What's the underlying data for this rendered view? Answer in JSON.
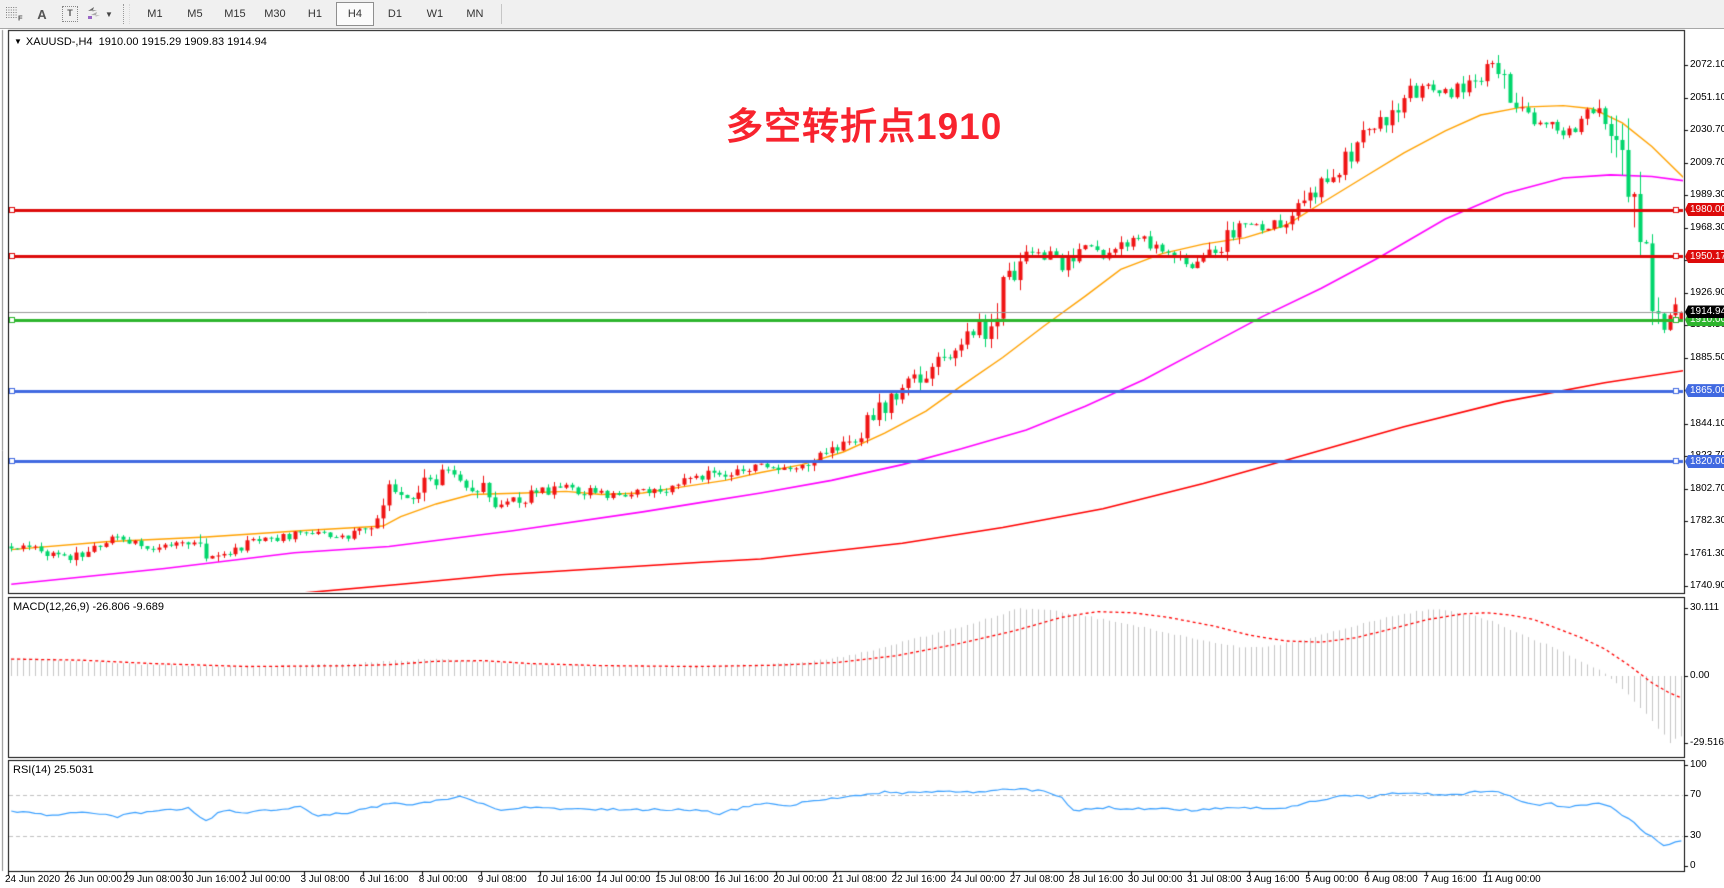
{
  "window": {
    "symbol_label": "XAUUSD-,H4",
    "quote_line": "1910.00 1915.29 1909.83 1914.94",
    "dropdown_glyph": "▼"
  },
  "toolbar": {
    "tools": [
      {
        "name": "templates",
        "glyph": "F"
      },
      {
        "name": "text-label",
        "glyph": "A"
      },
      {
        "name": "text-box",
        "glyph": "T"
      },
      {
        "name": "arrow-tools",
        "glyph": "arrows",
        "caret": "▼"
      }
    ],
    "timeframes": [
      {
        "label": "M1",
        "active": false
      },
      {
        "label": "M5",
        "active": false
      },
      {
        "label": "M15",
        "active": false
      },
      {
        "label": "M30",
        "active": false
      },
      {
        "label": "H1",
        "active": false
      },
      {
        "label": "H4",
        "active": true
      },
      {
        "label": "D1",
        "active": false
      },
      {
        "label": "W1",
        "active": false
      },
      {
        "label": "MN",
        "active": false
      }
    ]
  },
  "annotation": {
    "text": "多空转折点1910",
    "color": "#f8232e"
  },
  "indicators": {
    "macd_label": "MACD(12,26,9) -26.806 -9.689",
    "rsi_label": "RSI(14) 25.5031"
  },
  "chart_data": {
    "type": "candlestick",
    "symbol": "XAUUSD-",
    "timeframe": "H4",
    "quote": {
      "open": 1910.0,
      "high": 1915.29,
      "low": 1909.83,
      "close": 1914.94
    },
    "current_price": 1914.94,
    "current_price_label": "1914.94",
    "bars": 284,
    "seed": 73,
    "x_axis_labels": [
      "24 Jun 2020",
      "26 Jun 00:00",
      "29 Jun 08:00",
      "30 Jun 16:00",
      "2 Jul 00:00",
      "3 Jul 08:00",
      "6 Jul 16:00",
      "8 Jul 00:00",
      "9 Jul 08:00",
      "10 Jul 16:00",
      "14 Jul 00:00",
      "15 Jul 08:00",
      "16 Jul 16:00",
      "20 Jul 00:00",
      "21 Jul 08:00",
      "22 Jul 16:00",
      "24 Jul 00:00",
      "27 Jul 08:00",
      "28 Jul 16:00",
      "30 Jul 00:00",
      "31 Jul 08:00",
      "3 Aug 16:00",
      "5 Aug 00:00",
      "6 Aug 08:00",
      "7 Aug 16:00",
      "11 Aug 00:00"
    ],
    "y_axis_ticks": [
      "2072.10",
      "2051.10",
      "2030.70",
      "2009.70",
      "1989.30",
      "1968.30",
      "1947.90",
      "1926.90",
      "1906.50",
      "1885.50",
      "1865.10",
      "1844.10",
      "1823.70",
      "1802.70",
      "1782.30",
      "1761.30",
      "1740.90"
    ],
    "horizontal_lines": [
      {
        "price": 1980.0,
        "label": "1980.00",
        "color": "#dd0b0b"
      },
      {
        "price": 1950.17,
        "label": "1950.17",
        "color": "#dd0b0b"
      },
      {
        "price": 1910.0,
        "label": "1910.00",
        "color": "#2db52d"
      },
      {
        "price": 1865.0,
        "label": "1865.00",
        "color": "#4169e1"
      },
      {
        "price": 1820.0,
        "label": "1820.00",
        "color": "#4169e1"
      }
    ],
    "close_waypoints": [
      [
        0,
        1766
      ],
      [
        6,
        1762
      ],
      [
        10,
        1759
      ],
      [
        16,
        1771
      ],
      [
        24,
        1766
      ],
      [
        30,
        1770
      ],
      [
        33,
        1758
      ],
      [
        38,
        1766
      ],
      [
        42,
        1770
      ],
      [
        49,
        1774
      ],
      [
        56,
        1772
      ],
      [
        62,
        1780
      ],
      [
        64,
        1798
      ],
      [
        68,
        1794
      ],
      [
        72,
        1810
      ],
      [
        74,
        1813
      ],
      [
        78,
        1806
      ],
      [
        83,
        1792
      ],
      [
        88,
        1799
      ],
      [
        94,
        1804
      ],
      [
        100,
        1799
      ],
      [
        107,
        1800
      ],
      [
        112,
        1804
      ],
      [
        117,
        1810
      ],
      [
        122,
        1814
      ],
      [
        127,
        1818
      ],
      [
        132,
        1814
      ],
      [
        136,
        1822
      ],
      [
        140,
        1830
      ],
      [
        144,
        1838
      ],
      [
        148,
        1855
      ],
      [
        152,
        1868
      ],
      [
        156,
        1880
      ],
      [
        161,
        1895
      ],
      [
        165,
        1906
      ],
      [
        170,
        1940
      ],
      [
        174,
        1954
      ],
      [
        178,
        1944
      ],
      [
        182,
        1958
      ],
      [
        185,
        1950
      ],
      [
        190,
        1962
      ],
      [
        195,
        1954
      ],
      [
        200,
        1945
      ],
      [
        205,
        1958
      ],
      [
        209,
        1972
      ],
      [
        212,
        1969
      ],
      [
        216,
        1975
      ],
      [
        219,
        1988
      ],
      [
        223,
        2000
      ],
      [
        226,
        2012
      ],
      [
        230,
        2028
      ],
      [
        233,
        2040
      ],
      [
        236,
        2052
      ],
      [
        240,
        2060
      ],
      [
        244,
        2054
      ],
      [
        248,
        2064
      ],
      [
        251,
        2072
      ],
      [
        253,
        2068
      ],
      [
        255,
        2044
      ],
      [
        258,
        2032
      ],
      [
        261,
        2036
      ],
      [
        263,
        2030
      ],
      [
        266,
        2036
      ],
      [
        269,
        2046
      ],
      [
        271,
        2028
      ],
      [
        273,
        2008
      ],
      [
        275,
        1972
      ],
      [
        277,
        1938
      ],
      [
        279,
        1914
      ],
      [
        280,
        1907
      ],
      [
        282,
        1921
      ],
      [
        283,
        1915
      ]
    ],
    "ma_fast_waypoints": [
      [
        0,
        1764
      ],
      [
        16,
        1769
      ],
      [
        33,
        1772
      ],
      [
        49,
        1776
      ],
      [
        63,
        1779
      ],
      [
        66,
        1785
      ],
      [
        72,
        1793
      ],
      [
        78,
        1799
      ],
      [
        87,
        1800
      ],
      [
        94,
        1801
      ],
      [
        100,
        1799
      ],
      [
        107,
        1800
      ],
      [
        114,
        1804
      ],
      [
        121,
        1808
      ],
      [
        127,
        1813
      ],
      [
        134,
        1818
      ],
      [
        141,
        1826
      ],
      [
        148,
        1838
      ],
      [
        155,
        1852
      ],
      [
        161,
        1868
      ],
      [
        168,
        1886
      ],
      [
        175,
        1906
      ],
      [
        182,
        1925
      ],
      [
        188,
        1942
      ],
      [
        195,
        1952
      ],
      [
        202,
        1958
      ],
      [
        209,
        1962
      ],
      [
        216,
        1970
      ],
      [
        222,
        1984
      ],
      [
        229,
        2000
      ],
      [
        236,
        2016
      ],
      [
        243,
        2030
      ],
      [
        249,
        2040
      ],
      [
        256,
        2045
      ],
      [
        263,
        2046
      ],
      [
        268,
        2044
      ],
      [
        273,
        2035
      ],
      [
        278,
        2020
      ],
      [
        284,
        1998
      ]
    ],
    "ma_mid_waypoints": [
      [
        0,
        1742
      ],
      [
        26,
        1752
      ],
      [
        48,
        1762
      ],
      [
        64,
        1766
      ],
      [
        85,
        1776
      ],
      [
        107,
        1788
      ],
      [
        117,
        1794
      ],
      [
        127,
        1800
      ],
      [
        139,
        1808
      ],
      [
        151,
        1818
      ],
      [
        161,
        1828
      ],
      [
        172,
        1840
      ],
      [
        182,
        1855
      ],
      [
        192,
        1872
      ],
      [
        202,
        1892
      ],
      [
        212,
        1912
      ],
      [
        222,
        1930
      ],
      [
        232,
        1950
      ],
      [
        243,
        1974
      ],
      [
        253,
        1990
      ],
      [
        263,
        2000
      ],
      [
        271,
        2002
      ],
      [
        278,
        2001
      ],
      [
        284,
        1998
      ]
    ],
    "ma_slow_waypoints": [
      [
        40,
        1728
      ],
      [
        48,
        1736
      ],
      [
        66,
        1742
      ],
      [
        83,
        1748
      ],
      [
        100,
        1752
      ],
      [
        117,
        1756
      ],
      [
        127,
        1758
      ],
      [
        151,
        1768
      ],
      [
        168,
        1778
      ],
      [
        185,
        1790
      ],
      [
        202,
        1806
      ],
      [
        219,
        1824
      ],
      [
        236,
        1842
      ],
      [
        253,
        1858
      ],
      [
        270,
        1870
      ],
      [
        284,
        1878
      ]
    ],
    "macd": {
      "params": "12,26,9",
      "main_value": -26.806,
      "signal_value": -9.689,
      "scale_labels": [
        "30.111",
        "0.00",
        "-29.516"
      ],
      "scale_max": 30.111,
      "scale_min": -29.516,
      "histogram_waypoints": [
        [
          0,
          8
        ],
        [
          8,
          7.2
        ],
        [
          16,
          6
        ],
        [
          24,
          5
        ],
        [
          32,
          4.4
        ],
        [
          40,
          4
        ],
        [
          48,
          4.6
        ],
        [
          56,
          5.2
        ],
        [
          64,
          6.5
        ],
        [
          72,
          7.6
        ],
        [
          80,
          6.4
        ],
        [
          88,
          5.2
        ],
        [
          100,
          4.4
        ],
        [
          108,
          4.1
        ],
        [
          116,
          4.3
        ],
        [
          124,
          4.8
        ],
        [
          130,
          5.4
        ],
        [
          136,
          6.5
        ],
        [
          142,
          9
        ],
        [
          148,
          13
        ],
        [
          154,
          17
        ],
        [
          160,
          21
        ],
        [
          166,
          26
        ],
        [
          171,
          30
        ],
        [
          176,
          29
        ],
        [
          181,
          27
        ],
        [
          186,
          24.5
        ],
        [
          191,
          22
        ],
        [
          196,
          19
        ],
        [
          201,
          16
        ],
        [
          206,
          13.5
        ],
        [
          210,
          12.5
        ],
        [
          214,
          13.5
        ],
        [
          218,
          15.5
        ],
        [
          222,
          18
        ],
        [
          226,
          21
        ],
        [
          230,
          24
        ],
        [
          234,
          26.5
        ],
        [
          238,
          28.5
        ],
        [
          241,
          29.5
        ],
        [
          244,
          28.5
        ],
        [
          247,
          27
        ],
        [
          250,
          25
        ],
        [
          253,
          22
        ],
        [
          256,
          18
        ],
        [
          259,
          15
        ],
        [
          262,
          12
        ],
        [
          265,
          8
        ],
        [
          268,
          4
        ],
        [
          270,
          1
        ],
        [
          272,
          -3
        ],
        [
          274,
          -8
        ],
        [
          276,
          -14
        ],
        [
          278,
          -20
        ],
        [
          280,
          -26
        ],
        [
          281,
          -29.5
        ],
        [
          283,
          -26.8
        ]
      ],
      "signal_waypoints": [
        [
          0,
          7.5
        ],
        [
          12,
          7
        ],
        [
          24,
          5.5
        ],
        [
          40,
          4.2
        ],
        [
          56,
          4.5
        ],
        [
          64,
          5
        ],
        [
          72,
          6.5
        ],
        [
          80,
          6.8
        ],
        [
          88,
          5.5
        ],
        [
          100,
          4.6
        ],
        [
          116,
          4.2
        ],
        [
          130,
          4.8
        ],
        [
          140,
          6
        ],
        [
          150,
          9
        ],
        [
          160,
          14
        ],
        [
          170,
          20
        ],
        [
          178,
          26
        ],
        [
          184,
          28.5
        ],
        [
          190,
          28
        ],
        [
          196,
          26
        ],
        [
          204,
          22
        ],
        [
          210,
          18
        ],
        [
          216,
          15.5
        ],
        [
          222,
          15
        ],
        [
          228,
          17
        ],
        [
          234,
          21
        ],
        [
          240,
          25
        ],
        [
          246,
          27.5
        ],
        [
          250,
          28
        ],
        [
          254,
          27
        ],
        [
          258,
          25
        ],
        [
          262,
          21
        ],
        [
          266,
          17
        ],
        [
          270,
          12
        ],
        [
          274,
          5
        ],
        [
          278,
          -3
        ],
        [
          281,
          -7.5
        ],
        [
          283,
          -9.7
        ]
      ]
    },
    "rsi": {
      "period": 14,
      "value": 25.5031,
      "scale_labels": [
        "100",
        "70",
        "30",
        "0"
      ],
      "levels": [
        70,
        30
      ],
      "waypoints": [
        [
          0,
          55
        ],
        [
          6,
          50
        ],
        [
          12,
          53
        ],
        [
          18,
          49
        ],
        [
          24,
          55
        ],
        [
          30,
          57
        ],
        [
          33,
          45
        ],
        [
          36,
          55
        ],
        [
          40,
          53
        ],
        [
          44,
          56
        ],
        [
          49,
          58
        ],
        [
          52,
          50
        ],
        [
          56,
          52
        ],
        [
          60,
          56
        ],
        [
          64,
          62
        ],
        [
          68,
          60
        ],
        [
          72,
          65
        ],
        [
          76,
          68
        ],
        [
          80,
          62
        ],
        [
          83,
          55
        ],
        [
          88,
          58
        ],
        [
          92,
          57
        ],
        [
          100,
          56
        ],
        [
          108,
          56
        ],
        [
          116,
          55
        ],
        [
          120,
          52
        ],
        [
          124,
          58
        ],
        [
          128,
          62
        ],
        [
          132,
          60
        ],
        [
          136,
          65
        ],
        [
          140,
          68
        ],
        [
          144,
          70
        ],
        [
          148,
          73
        ],
        [
          152,
          72
        ],
        [
          156,
          74
        ],
        [
          161,
          73
        ],
        [
          165,
          74
        ],
        [
          170,
          76
        ],
        [
          174,
          75
        ],
        [
          178,
          68
        ],
        [
          180,
          55
        ],
        [
          183,
          57
        ],
        [
          186,
          58
        ],
        [
          189,
          56
        ],
        [
          192,
          57
        ],
        [
          196,
          56
        ],
        [
          200,
          55
        ],
        [
          204,
          57
        ],
        [
          208,
          58
        ],
        [
          212,
          57
        ],
        [
          216,
          58
        ],
        [
          219,
          62
        ],
        [
          223,
          66
        ],
        [
          226,
          70
        ],
        [
          230,
          68
        ],
        [
          233,
          71
        ],
        [
          236,
          73
        ],
        [
          240,
          72
        ],
        [
          244,
          70
        ],
        [
          248,
          73
        ],
        [
          251,
          74
        ],
        [
          253,
          72
        ],
        [
          255,
          65
        ],
        [
          258,
          60
        ],
        [
          261,
          62
        ],
        [
          263,
          58
        ],
        [
          266,
          60
        ],
        [
          269,
          63
        ],
        [
          271,
          58
        ],
        [
          273,
          50
        ],
        [
          275,
          42
        ],
        [
          277,
          32
        ],
        [
          279,
          25
        ],
        [
          280,
          20
        ],
        [
          281,
          22
        ],
        [
          282,
          24
        ],
        [
          283,
          25.5
        ]
      ]
    },
    "colors": {
      "candle_up": "#f01414",
      "candle_down": "#00d66c",
      "ma_fast": "#ffa200",
      "ma_mid": "#ff00ff",
      "ma_slow": "#ff0000",
      "macd_histogram": "#c6c6c6",
      "macd_signal": "#ff0000",
      "rsi_line": "#3aa0ff",
      "rsi_levels": "#c0c0c0",
      "current_price_line": "#999999",
      "current_price_tag_bg": "#000000"
    }
  }
}
